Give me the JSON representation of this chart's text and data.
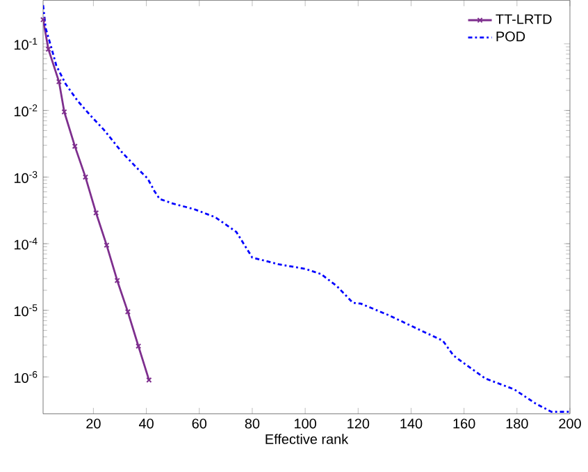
{
  "chart_data": {
    "type": "line",
    "xlabel": "Effective rank",
    "xlim": [
      1,
      200
    ],
    "ylim": [
      2.8e-07,
      0.45
    ],
    "log": "y",
    "legend": "top right",
    "grid": false,
    "xticks": [
      20,
      40,
      60,
      80,
      100,
      120,
      140,
      160,
      180,
      200
    ],
    "yticks": [
      {
        "value": 1e-06,
        "label": "10$^{-6}$"
      },
      {
        "value": 1e-05,
        "label": "10$^{-5}$"
      },
      {
        "value": 0.0001,
        "label": "10$^{-4}$"
      },
      {
        "value": 0.001,
        "label": "10$^{-3}$"
      },
      {
        "value": 0.01,
        "label": "10$^{-2}$"
      },
      {
        "value": 0.1,
        "label": "10$^{-1}$"
      }
    ],
    "series": [
      {
        "name": "TT-LRTD",
        "color": "#7e2f8e",
        "marker": "cross",
        "line_style": "solid",
        "x": [
          1,
          3,
          7,
          9,
          13,
          17,
          21,
          25,
          29,
          33,
          37,
          41
        ],
        "values": [
          0.23,
          0.083,
          0.027,
          0.0095,
          0.0029,
          0.001,
          0.00029,
          9.5e-05,
          2.8e-05,
          9.5e-06,
          2.9e-06,
          9e-07
        ]
      },
      {
        "name": "POD",
        "color": "#0000ff",
        "marker": "none",
        "line_style": "dashdot",
        "x": [
          1,
          2,
          4,
          6,
          9.5,
          14,
          19,
          24,
          31,
          37,
          40.5,
          43,
          45,
          50,
          58,
          66,
          74,
          80,
          90,
          100,
          106,
          112,
          118,
          121,
          132,
          141,
          152,
          156,
          161,
          168,
          179,
          187,
          193,
          200
        ],
        "values": [
          0.38,
          0.17,
          0.091,
          0.047,
          0.025,
          0.014,
          0.0083,
          0.0051,
          0.0023,
          0.0013,
          0.00095,
          0.00062,
          0.00047,
          0.0004,
          0.00033,
          0.00025,
          0.00015,
          6.2e-05,
          4.9e-05,
          4.2e-05,
          3.5e-05,
          2.3e-05,
          1.3e-05,
          1.26e-05,
          8.3e-06,
          5.6e-06,
          3.5e-06,
          2.1e-06,
          1.5e-06,
          9.5e-07,
          6.5e-07,
          4e-07,
          3e-07,
          3e-07
        ]
      }
    ]
  }
}
